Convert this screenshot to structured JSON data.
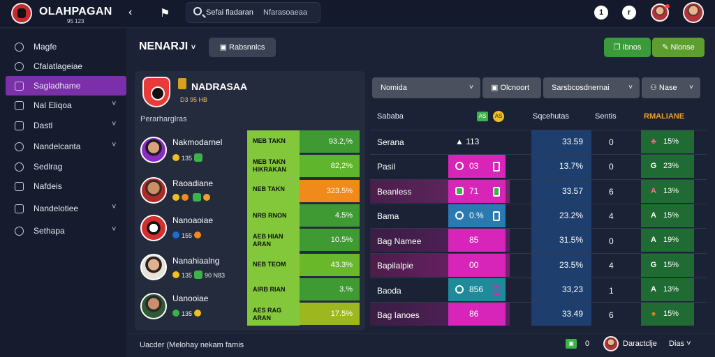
{
  "app": {
    "brand": "OLAHPAGAN",
    "brand_sub": "95 123"
  },
  "topbar": {
    "back_icon": "chevron-left-icon",
    "brand_icon": "flag-icon",
    "search_query": "Sefai fladaran",
    "search_hint": "Nfarasoaeaa",
    "btn1": "1",
    "btn2": "r"
  },
  "sidebar": {
    "items": [
      {
        "label": "Magfe",
        "icon": "search-icon",
        "chevron": false,
        "active": false
      },
      {
        "label": "Cfalatlageiae",
        "icon": "clock-icon",
        "chevron": false,
        "active": false
      },
      {
        "label": "Sagladhame",
        "icon": "grid-icon",
        "chevron": false,
        "active": true
      },
      {
        "label": "Nal Eliqoa",
        "icon": "table-icon",
        "chevron": true,
        "active": false
      },
      {
        "label": "Dastl",
        "icon": "calendar-icon",
        "chevron": true,
        "active": false
      },
      {
        "label": "Nandelcanta",
        "icon": "settings-icon",
        "chevron": true,
        "active": false
      },
      {
        "label": "Sedlrag",
        "icon": "chart-icon",
        "chevron": false,
        "active": false
      },
      {
        "label": "Nafdeis",
        "icon": "folder-icon",
        "chevron": false,
        "active": false
      },
      {
        "label": "Nandelotiee",
        "icon": "list-icon",
        "chevron": true,
        "active": false
      },
      {
        "label": "Sethapa",
        "icon": "gear-icon",
        "chevron": true,
        "active": false
      }
    ]
  },
  "header": {
    "title": "NENARJI",
    "title_chevron": "˅",
    "filter_btn": "Rabsnnlcs",
    "green_btn1": "Ibnos",
    "green_btn2": "Nlonse"
  },
  "team": {
    "name": "NADRASAA",
    "sub": "D3 95 HB",
    "list_head": "Perarharglras"
  },
  "players": [
    {
      "name": "Nakmodarnel",
      "meta": "135",
      "meta2": "",
      "stat_label": "MEB TAKN",
      "stat_label2": "",
      "value": "93.2,%",
      "color": "#3f9a34"
    },
    {
      "name": "",
      "meta": "",
      "meta2": "",
      "stat_label": "MEB TAKN",
      "stat_label2": "HIKRAKAN",
      "value": "82,2%",
      "color": "#5fb52c"
    },
    {
      "name": "Raoadiane",
      "meta": "",
      "meta2": "",
      "stat_label": "NEB TAKN",
      "stat_label2": "",
      "value": "323.5%",
      "color": "#f08a1a"
    },
    {
      "name": "Nanoaoiae",
      "meta": "155",
      "meta2": "",
      "stat_label": "NRB RNON",
      "stat_label2": "",
      "value": "4.5%",
      "color": "#3f9a34"
    },
    {
      "name": "",
      "meta": "",
      "meta2": "",
      "stat_label": "AEB HIAN",
      "stat_label2": "ARAN",
      "value": "10.5%",
      "color": "#3f9a34"
    },
    {
      "name": "Nanahiaalng",
      "meta": "135",
      "meta2": "90 N83",
      "stat_label": "NEB TEOM",
      "stat_label2": "",
      "value": "43.3%",
      "color": "#69b82a"
    },
    {
      "name": "Uanooiae",
      "meta": "",
      "meta2": "",
      "stat_label": "AIRB RIAN",
      "stat_label2": "",
      "value": "3.%",
      "color": "#3f9a34"
    },
    {
      "name": "",
      "meta": "",
      "meta2": "",
      "stat_label": "AES RAG",
      "stat_label2": "ARAN",
      "value": "17.5%",
      "color": "#9cb81e"
    }
  ],
  "right": {
    "dd1": "Nomida",
    "dd2": "Olcnoort",
    "dd3": "Sarsbcosdnernai",
    "dd4": "Nase",
    "col_name": "Sababa",
    "col_sort": "Sqcehutas",
    "col_num": "Sentis",
    "col_pct": "RMALIANE",
    "tag_green": "AS",
    "tag_yellow": "AS",
    "rows": [
      {
        "name": "Serana",
        "mid": "113",
        "mid_style": "none",
        "blue": "33.59",
        "num": "0",
        "pct": "15%",
        "pct_icon": "♣"
      },
      {
        "name": "Pasil",
        "mid": "03",
        "mid_style": "magenta",
        "blue": "13.7%",
        "num": "0",
        "pct": "23%",
        "pct_icon": "G"
      },
      {
        "name": "Beanless",
        "mid": "71",
        "mid_style": "magenta",
        "blue": "33.57",
        "num": "6",
        "pct": "13%",
        "pct_icon": "A"
      },
      {
        "name": "Bama",
        "mid": "0.%",
        "mid_style": "blue",
        "blue": "23.2%",
        "num": "4",
        "pct": "15%",
        "pct_icon": "A"
      },
      {
        "name": "Bag Namee",
        "mid": "85",
        "mid_style": "magenta",
        "blue": "31.5%",
        "num": "0",
        "pct": "19%",
        "pct_icon": "A"
      },
      {
        "name": "Bapilalpie",
        "mid": "00",
        "mid_style": "magenta",
        "blue": "23.5%",
        "num": "4",
        "pct": "15%",
        "pct_icon": "G"
      },
      {
        "name": "Baoda",
        "mid": "856",
        "mid_style": "teal",
        "blue": "33,23",
        "num": "1",
        "pct": "13%",
        "pct_icon": "A"
      },
      {
        "name": "Bag Ianoes",
        "mid": "86",
        "mid_style": "magenta",
        "blue": "33.49",
        "num": "6",
        "pct": "15%",
        "pct_icon": "♠"
      }
    ]
  },
  "footer": {
    "text": "Uacder (Melohay nekam famis",
    "zero": "0",
    "user": "Daractclje",
    "lang": "Dias"
  }
}
